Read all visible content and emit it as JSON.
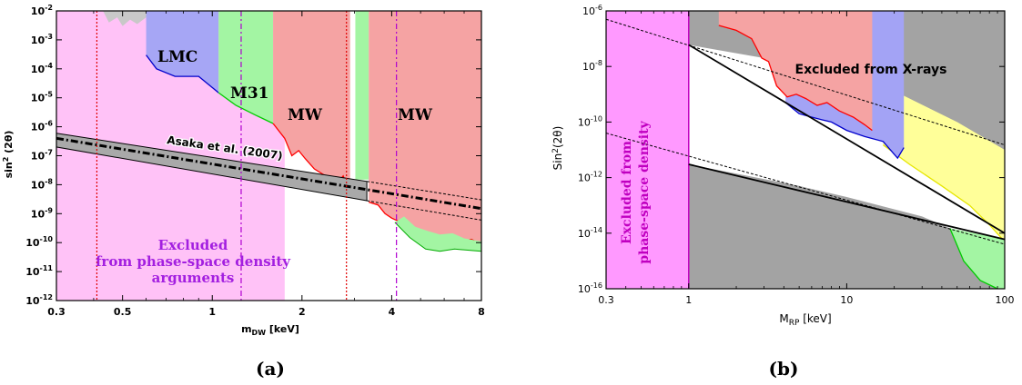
{
  "chart_data": [
    {
      "type": "area",
      "panel_caption": "(a)",
      "xlabel": "m_DW [keV]",
      "ylabel": "sin^2 (2θ)",
      "xscale": "log",
      "yscale": "log",
      "xlim": [
        0.3,
        8
      ],
      "ylim": [
        1e-12,
        0.01
      ],
      "x_ticks": [
        {
          "v": 0.3,
          "label": "0.3"
        },
        {
          "v": 0.5,
          "label": "0.5"
        },
        {
          "v": 1,
          "label": "1"
        },
        {
          "v": 2,
          "label": "2"
        },
        {
          "v": 4,
          "label": "4"
        },
        {
          "v": 8,
          "label": "8"
        }
      ],
      "y_ticks": [
        {
          "e": -12,
          "label": "10-12"
        },
        {
          "e": -11,
          "label": "10-11"
        },
        {
          "e": -10,
          "label": "10-10"
        },
        {
          "e": -9,
          "label": "10-9"
        },
        {
          "e": -8,
          "label": "10-8"
        },
        {
          "e": -7,
          "label": "10-7"
        },
        {
          "e": -6,
          "label": "10-6"
        },
        {
          "e": -5,
          "label": "10-5"
        },
        {
          "e": -4,
          "label": "10-4"
        },
        {
          "e": -3,
          "label": "10-3"
        },
        {
          "e": -2,
          "label": "10-2"
        }
      ],
      "regions": [
        {
          "name": "phase-space",
          "color": "#ffc2f7",
          "x_range": [
            0.3,
            1.75
          ],
          "label_lines": [
            "Excluded",
            "from phase-space density",
            "arguments"
          ],
          "label_color": "#a31fe0"
        },
        {
          "name": "top-grey",
          "color": "#c8c8c8",
          "x_range": [
            0.43,
            0.62
          ],
          "lower": [
            [
              0.43,
              0.01
            ],
            [
              0.45,
              0.004
            ],
            [
              0.48,
              0.006
            ],
            [
              0.5,
              0.003
            ],
            [
              0.53,
              0.005
            ],
            [
              0.56,
              0.0035
            ],
            [
              0.6,
              0.006
            ],
            [
              0.62,
              0.01
            ]
          ]
        },
        {
          "name": "LMC",
          "label": "LMC",
          "color": "#a6a6f5",
          "edge": "#0000cc",
          "lower": [
            [
              0.6,
              0.0003
            ],
            [
              0.65,
              0.0001
            ],
            [
              0.75,
              5.5e-05
            ],
            [
              0.9,
              5.5e-05
            ],
            [
              1.05,
              1.5e-05
            ]
          ]
        },
        {
          "name": "M31",
          "label": "M31",
          "color": "#a3f5a3",
          "edge": "#00cc00",
          "lower": [
            [
              1.05,
              1.5e-05
            ],
            [
              1.2,
              5.5e-06
            ],
            [
              1.4,
              2.5e-06
            ],
            [
              1.6,
              1.3e-06
            ]
          ]
        },
        {
          "name": "MW-1",
          "label": "MW",
          "color": "#f5a3a3",
          "edge": "#ff0000",
          "lower": [
            [
              1.6,
              1.3e-06
            ],
            [
              1.75,
              4e-07
            ],
            [
              1.85,
              1e-07
            ],
            [
              1.95,
              1.5e-07
            ],
            [
              2.05,
              8e-08
            ],
            [
              2.2,
              3.5e-08
            ],
            [
              2.4,
              2e-08
            ],
            [
              2.6,
              1e-08
            ],
            [
              2.75,
              2e-08
            ],
            [
              2.9,
              5e-09
            ]
          ]
        },
        {
          "name": "green-strip",
          "color": "#a3f5a3",
          "x_range": [
            3.02,
            3.35
          ],
          "lower_y": 1.5e-08
        },
        {
          "name": "MW-2",
          "label": "MW",
          "color": "#f5a3a3",
          "edge": "#ff0000",
          "lower": [
            [
              3.35,
              2.5e-09
            ],
            [
              3.6,
              2e-09
            ],
            [
              3.8,
              1e-09
            ],
            [
              4.0,
              7e-10
            ],
            [
              4.3,
              5e-10
            ],
            [
              4.7,
              3e-10
            ],
            [
              5.2,
              2e-10
            ],
            [
              5.7,
              1.5e-10
            ],
            [
              6.2,
              1.8e-10
            ],
            [
              6.8,
              1.1e-10
            ],
            [
              7.4,
              1.3e-10
            ],
            [
              8,
              9e-11
            ]
          ]
        },
        {
          "name": "green-low",
          "color": "#a3f5a3",
          "edge": "#00aa00",
          "upper": [
            [
              4.1,
              5e-10
            ],
            [
              4.4,
              8e-10
            ],
            [
              4.8,
              3.5e-10
            ],
            [
              5.3,
              2.5e-10
            ],
            [
              5.8,
              1.9e-10
            ],
            [
              6.4,
              2.1e-10
            ],
            [
              7.0,
              1.4e-10
            ],
            [
              8,
              1.1e-10
            ]
          ],
          "lower": [
            [
              4.1,
              5e-10
            ],
            [
              4.6,
              1.5e-10
            ],
            [
              5.2,
              6e-11
            ],
            [
              5.8,
              5e-11
            ],
            [
              6.5,
              6e-11
            ],
            [
              8,
              5e-11
            ]
          ]
        }
      ],
      "band": {
        "label": "Asaka et al. (2007)",
        "x_range": [
          0.3,
          3.3
        ],
        "upper_ends": [
          6e-07,
          1.3e-08
        ],
        "lower_ends": [
          2e-07,
          2.8e-09
        ],
        "fill": "#a9a9a9"
      },
      "lines": [
        {
          "name": "dashdot-thick",
          "style": "dash-dot",
          "ends": [
            [
              0.3,
              4e-07
            ],
            [
              8,
              1.5e-09
            ]
          ]
        },
        {
          "name": "dashed-upper",
          "style": "dashed",
          "ends": [
            [
              3.3,
              1.3e-08
            ],
            [
              8,
              3e-09
            ]
          ]
        },
        {
          "name": "dashed-lower",
          "style": "dashed",
          "ends": [
            [
              3.3,
              2.8e-09
            ],
            [
              8,
              6e-10
            ]
          ]
        }
      ],
      "vlines": [
        {
          "x": 0.41,
          "color": "#e00000",
          "style": "dotted"
        },
        {
          "x": 1.25,
          "color": "#b000d0",
          "style": "dash-dot"
        },
        {
          "x": 2.82,
          "color": "#e00000",
          "style": "dotted"
        },
        {
          "x": 4.15,
          "color": "#b000d0",
          "style": "dash-dot"
        }
      ]
    },
    {
      "type": "area",
      "panel_caption": "(b)",
      "xlabel": "M_RP [keV]",
      "ylabel": "Sin^2(2θ)",
      "xscale": "log",
      "yscale": "log",
      "xlim": [
        0.3,
        100
      ],
      "ylim": [
        1e-16,
        1e-06
      ],
      "x_ticks": [
        {
          "v": 0.3,
          "label": "0.3"
        },
        {
          "v": 1,
          "label": "1"
        },
        {
          "v": 10,
          "label": "10"
        },
        {
          "v": 100,
          "label": "100"
        }
      ],
      "y_ticks": [
        {
          "e": -16,
          "label": "10-16"
        },
        {
          "e": -14,
          "label": "10-14"
        },
        {
          "e": -12,
          "label": "10-12"
        },
        {
          "e": -10,
          "label": "10-10"
        },
        {
          "e": -8,
          "label": "10-8"
        },
        {
          "e": -6,
          "label": "10-6"
        }
      ],
      "annotations": [
        {
          "text": "Excluded from X-rays",
          "color": "#000000"
        },
        {
          "text_lines": [
            "Excluded from",
            "phase-space density"
          ],
          "color": "#c000c0",
          "rotated": true
        }
      ],
      "regions": [
        {
          "name": "phase-space",
          "color": "#ff99ff",
          "edge": "#c000c0",
          "x_range": [
            0.3,
            1
          ]
        },
        {
          "name": "grey-upper",
          "color": "#a3a3a3",
          "upper_y": 1e-06,
          "lower": [
            [
              1,
              6e-08
            ],
            [
              3,
              2e-08
            ],
            [
              10,
              4e-09
            ],
            [
              22,
              1e-09
            ],
            [
              50,
              1e-10
            ],
            [
              100,
              1e-11
            ]
          ]
        },
        {
          "name": "red",
          "color": "#f5a3a3",
          "edge": "#ff0000",
          "x_range": [
            1.55,
            14.5
          ],
          "lower": [
            [
              1.55,
              3e-07
            ],
            [
              2,
              2e-07
            ],
            [
              2.5,
              1e-07
            ],
            [
              2.9,
              2e-08
            ],
            [
              3.2,
              1.5e-08
            ],
            [
              3.6,
              2e-09
            ],
            [
              4.2,
              8e-10
            ],
            [
              4.8,
              1e-09
            ],
            [
              5.5,
              7e-10
            ],
            [
              6.5,
              4e-10
            ],
            [
              7.5,
              5e-10
            ],
            [
              9,
              2.5e-10
            ],
            [
              11,
              1.5e-10
            ],
            [
              13,
              8e-11
            ],
            [
              14.5,
              5e-11
            ]
          ]
        },
        {
          "name": "blue",
          "color": "#a3a3f5",
          "edge": "#0000cc",
          "lower": [
            [
              4.1,
              5e-10
            ],
            [
              5,
              2e-10
            ],
            [
              6,
              1.5e-10
            ],
            [
              7,
              1.2e-10
            ],
            [
              8,
              1e-10
            ],
            [
              10,
              5e-11
            ],
            [
              13,
              3e-11
            ],
            [
              17,
              2e-11
            ],
            [
              21,
              5e-12
            ],
            [
              23,
              1.2e-11
            ]
          ]
        },
        {
          "name": "yellow",
          "color": "#ffff99",
          "edge": "#e6e600",
          "lower": [
            [
              17,
              1.5e-11
            ],
            [
              25,
              3e-12
            ],
            [
              40,
              5e-13
            ],
            [
              60,
              1e-13
            ],
            [
              80,
              2e-14
            ],
            [
              100,
              5e-15
            ]
          ]
        },
        {
          "name": "grey-lower",
          "color": "#a3a3a3",
          "x_range": [
            1,
            100
          ],
          "upper": [
            [
              1,
              3e-12
            ],
            [
              5,
              5e-13
            ],
            [
              10,
              2e-13
            ],
            [
              30,
              4e-14
            ],
            [
              45,
              1.5e-14
            ],
            [
              100,
              6e-15
            ]
          ]
        },
        {
          "name": "green",
          "color": "#a3f5a3",
          "edge": "#00cc00",
          "upper": [
            [
              45,
              1.5e-14
            ],
            [
              100,
              6e-15
            ]
          ],
          "lower": [
            [
              45,
              1.5e-14
            ],
            [
              55,
              1e-15
            ],
            [
              70,
              2e-16
            ],
            [
              90,
              1e-16
            ]
          ]
        }
      ],
      "lines": [
        {
          "name": "solid-upper",
          "style": "solid",
          "ends": [
            [
              1,
              6e-08
            ],
            [
              100,
              1e-14
            ]
          ]
        },
        {
          "name": "solid-lower",
          "style": "solid",
          "ends": [
            [
              1,
              3e-12
            ],
            [
              100,
              6e-15
            ]
          ]
        },
        {
          "name": "dashed-upper",
          "style": "dashed",
          "ends": [
            [
              0.3,
              5e-07
            ],
            [
              100,
              1.5e-11
            ]
          ]
        },
        {
          "name": "dashed-lower",
          "style": "dashed",
          "ends": [
            [
              0.3,
              4e-11
            ],
            [
              100,
              4e-15
            ]
          ]
        }
      ]
    }
  ]
}
